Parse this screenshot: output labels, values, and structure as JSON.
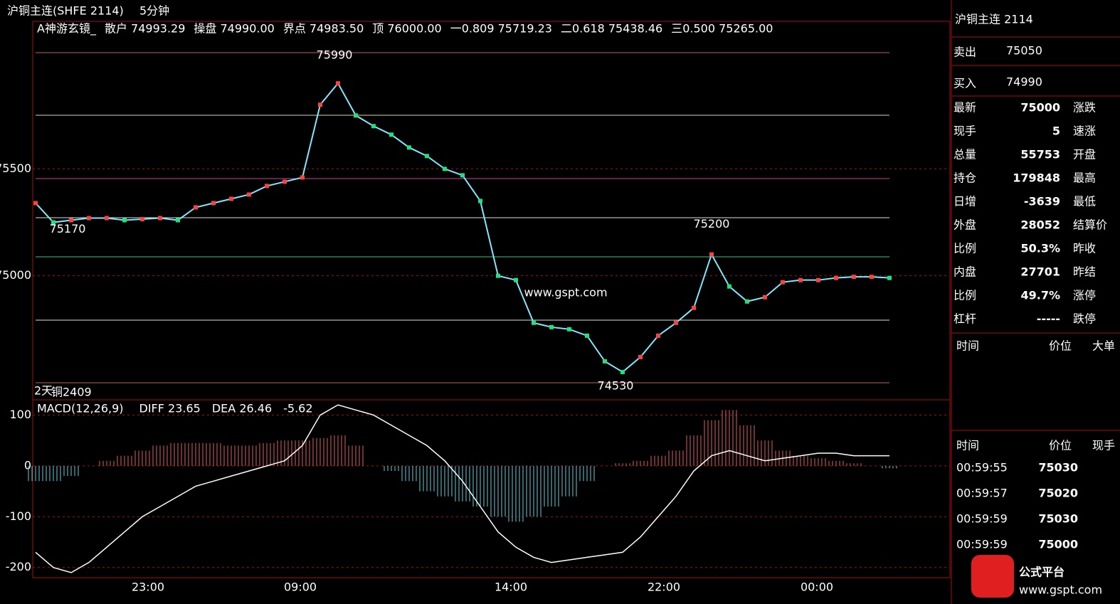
{
  "header": {
    "title": "沪铜主连(SHFE 2114)",
    "period": "5分钟"
  },
  "indicator": [
    {
      "text": "A神游玄镜_",
      "color": "#ffffff"
    },
    {
      "text": "散户 74993.29",
      "color": "#ffffff"
    },
    {
      "text": "操盘 74990.00",
      "color": "#40e0ff"
    },
    {
      "text": "界点 74983.50",
      "color": "#ff40c0"
    },
    {
      "text": "顶 76000.00",
      "color": "#ff3030"
    },
    {
      "text": "一0.809 75719.23",
      "color": "#ffff40"
    },
    {
      "text": "二0.618 75438.46",
      "color": "#ff40c0"
    },
    {
      "text": "三0.500 75265.00",
      "color": "#ffffff"
    }
  ],
  "price_chart": {
    "type": "line",
    "ylim": [
      74420,
      76190
    ],
    "yticks": [
      75500,
      75000
    ],
    "values": [
      75340,
      75250,
      75260,
      75270,
      75270,
      75260,
      75265,
      75270,
      75260,
      75320,
      75340,
      75360,
      75380,
      75420,
      75440,
      75460,
      75800,
      75900,
      75750,
      75700,
      75660,
      75600,
      75560,
      75500,
      75470,
      75350,
      75000,
      74980,
      74780,
      74760,
      74750,
      74720,
      74600,
      74550,
      74620,
      74720,
      74780,
      74850,
      75100,
      74950,
      74880,
      74900,
      74970,
      74980,
      74980,
      74990,
      74995,
      74995,
      74990
    ],
    "color": "#7fe8ff",
    "annotations": [
      {
        "text": "75990",
        "value": 75990,
        "color": "#ff5050"
      },
      {
        "text": "75170",
        "value": 75170,
        "color": "#40e0ff"
      },
      {
        "text": "75200",
        "value": 75200,
        "color": "#ff5050"
      },
      {
        "text": "74530",
        "value": 74530,
        "color": "#40e0ff"
      }
    ],
    "footnote": "2天",
    "footnote2": "铜2409",
    "watermark": "www.gspt.com"
  },
  "macd": {
    "type": "bar",
    "title": "MACD(12,26,9)",
    "items": [
      {
        "text": "DIFF 23.65",
        "color": "#ffffff"
      },
      {
        "text": "DEA 26.46",
        "color": "#ffff40"
      },
      {
        "text": "-5.62",
        "color": "#ffffff"
      }
    ],
    "ylim": [
      -220,
      130
    ],
    "yticks": [
      100,
      0,
      -100,
      -200
    ],
    "values": [
      -30,
      -30,
      -20,
      0,
      10,
      20,
      30,
      40,
      45,
      45,
      45,
      40,
      40,
      45,
      50,
      50,
      55,
      60,
      40,
      0,
      -10,
      -30,
      -50,
      -60,
      -70,
      -80,
      -100,
      -110,
      -100,
      -80,
      -60,
      -30,
      0,
      5,
      10,
      20,
      30,
      60,
      90,
      110,
      80,
      50,
      30,
      20,
      15,
      10,
      5,
      0,
      -5
    ],
    "diff": [
      -170,
      -200,
      -210,
      -190,
      -160,
      -130,
      -100,
      -80,
      -60,
      -40,
      -30,
      -20,
      -10,
      0,
      10,
      40,
      100,
      120,
      110,
      100,
      80,
      60,
      40,
      10,
      -30,
      -80,
      -130,
      -160,
      -180,
      -190,
      -185,
      -180,
      -175,
      -170,
      -140,
      -100,
      -60,
      -10,
      20,
      30,
      20,
      10,
      15,
      20,
      25,
      25,
      20,
      20,
      20
    ]
  },
  "xaxis": [
    "23:00",
    "09:00",
    "14:00",
    "22:00",
    "00:00"
  ],
  "quote": {
    "name": "沪铜主连  2114",
    "ask_label": "卖出",
    "ask": "75050",
    "bid_label": "买入",
    "bid": "74990",
    "rows": [
      [
        "最新",
        "75000",
        "涨跌"
      ],
      [
        "现手",
        "5",
        "速涨"
      ],
      [
        "总量",
        "55753",
        "开盘"
      ],
      [
        "持仓",
        "179848",
        "最高"
      ],
      [
        "日增",
        "-3639",
        "最低"
      ],
      [
        "外盘",
        "28052",
        "结算价"
      ],
      [
        "比例",
        "50.3%",
        "昨收"
      ],
      [
        "内盘",
        "27701",
        "昨结"
      ],
      [
        "比例",
        "49.7%",
        "涨停"
      ],
      [
        "杠杆",
        "-----",
        "跌停"
      ]
    ],
    "big_header": [
      "时间",
      "价位",
      "大单"
    ],
    "tick_header": [
      "时间",
      "价位",
      "现手"
    ],
    "ticks": [
      [
        "00:59:55",
        "75030"
      ],
      [
        "00:59:57",
        "75020"
      ],
      [
        "00:59:59",
        "75030"
      ],
      [
        "00:59:59",
        "75000"
      ]
    ]
  },
  "logo": {
    "name": "公式平台",
    "url": "www.gspt.com"
  }
}
